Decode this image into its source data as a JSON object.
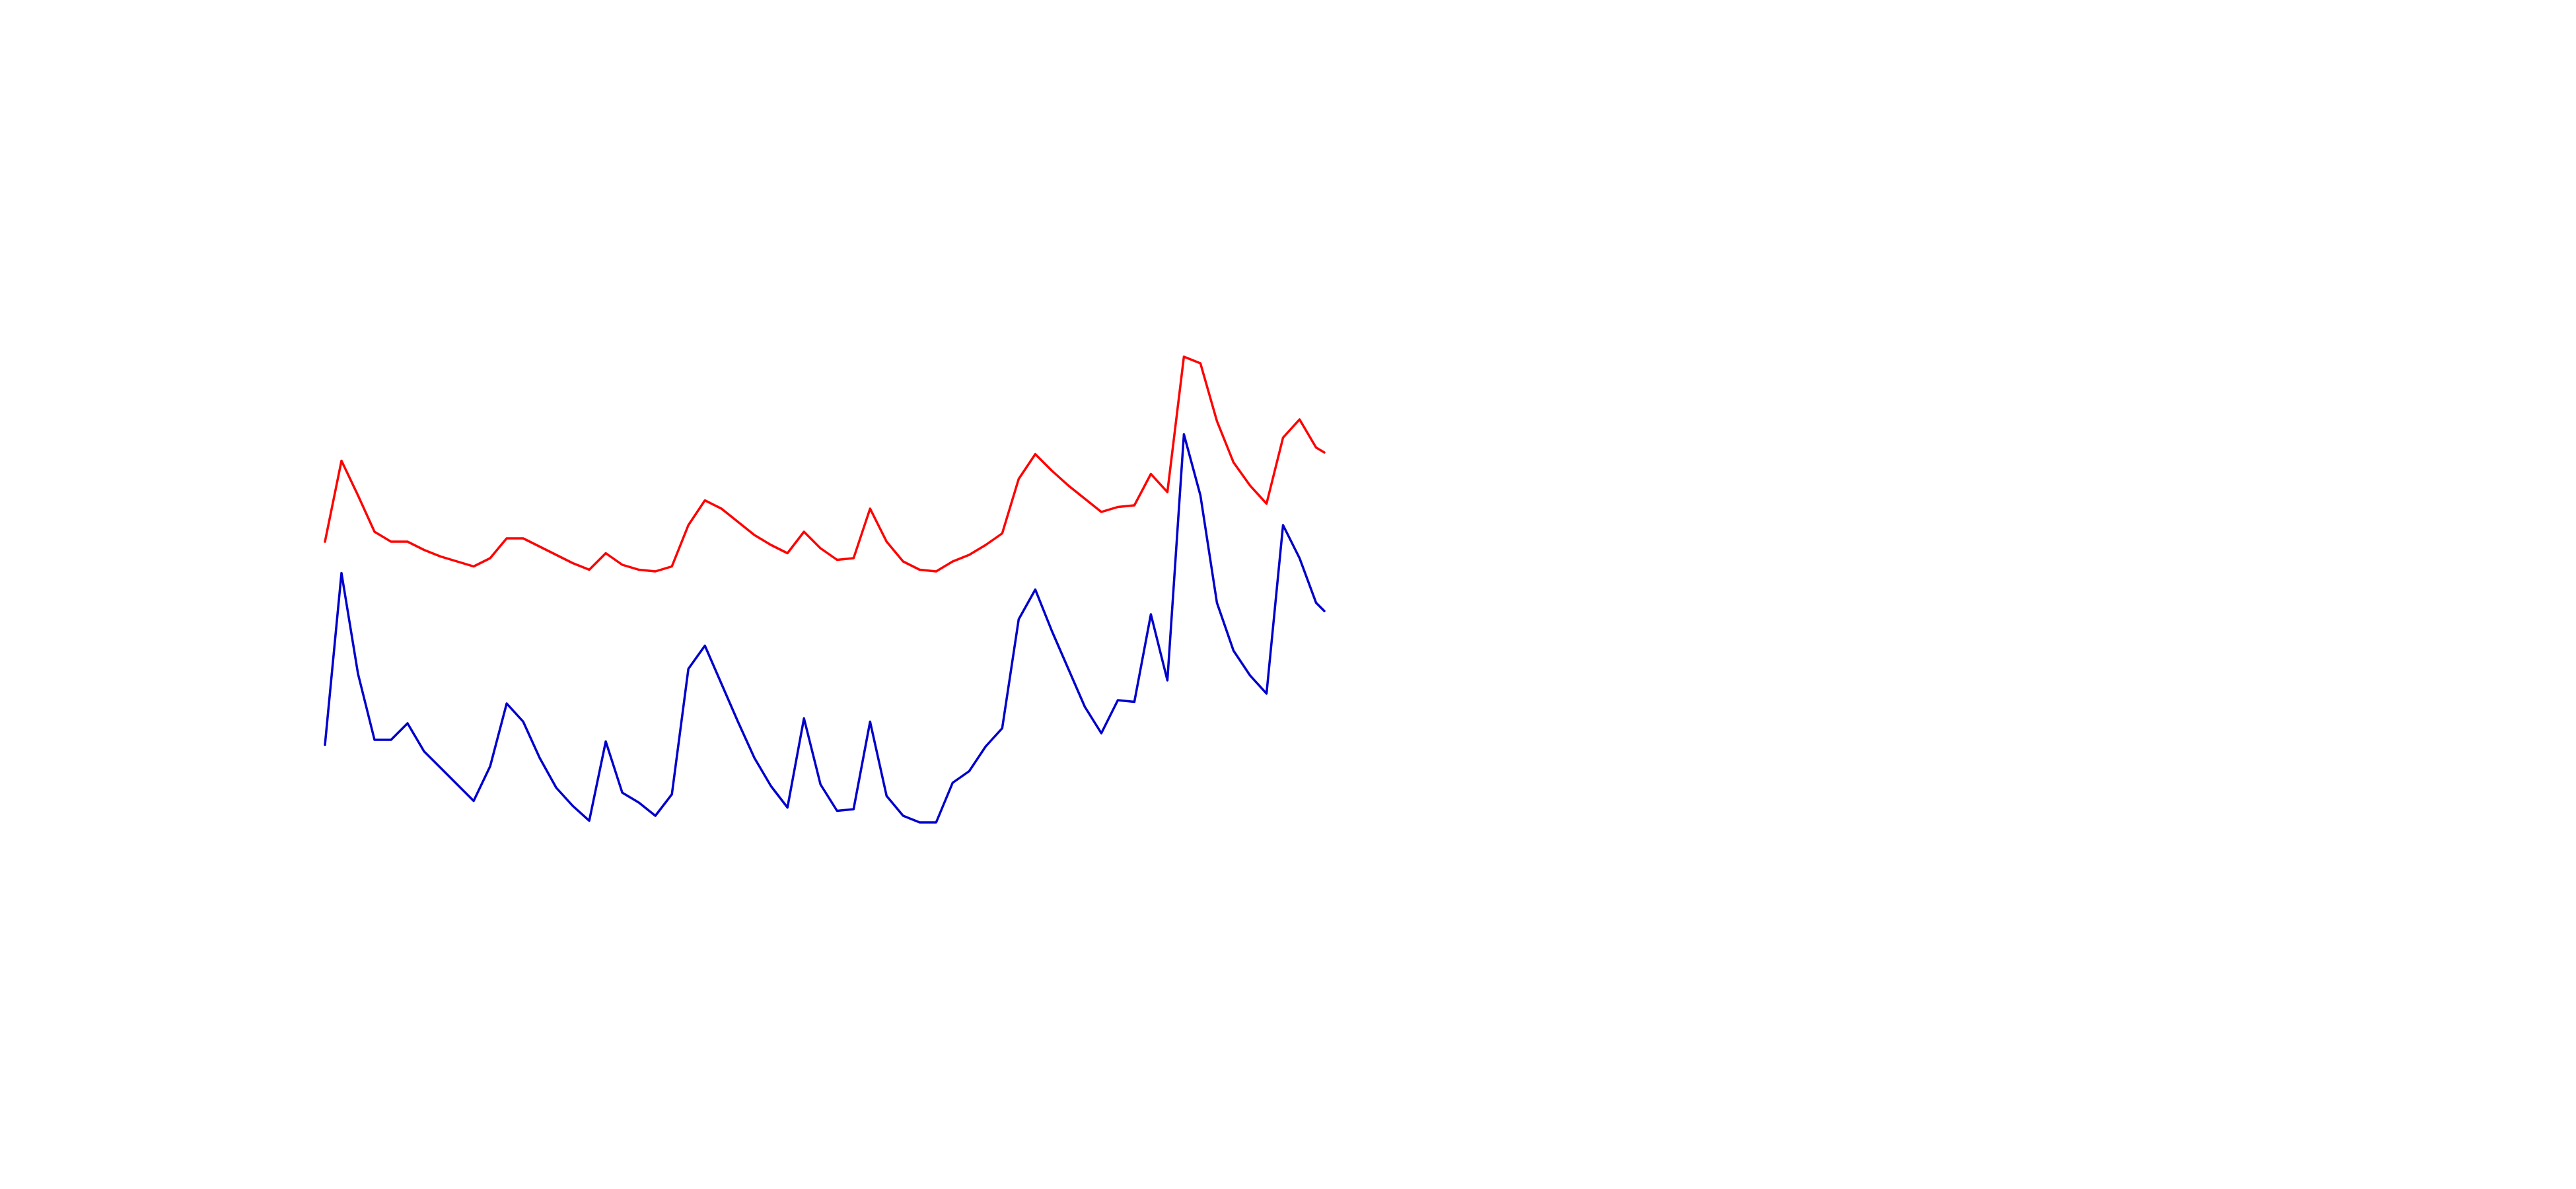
{
  "chart_data": {
    "type": "line",
    "x": [
      0,
      10,
      20,
      30,
      40,
      50,
      60,
      70,
      80,
      90,
      100,
      110,
      120,
      130,
      140,
      150,
      160,
      170,
      180,
      190,
      200,
      210,
      220,
      230,
      240,
      250,
      260,
      270,
      280,
      290,
      300,
      310,
      320,
      330,
      340,
      350,
      360,
      370,
      380,
      390,
      400,
      410,
      420,
      430,
      440,
      450,
      460,
      470,
      480,
      490,
      500,
      510,
      520,
      530,
      540,
      550,
      560,
      570,
      580,
      590,
      600,
      605
    ],
    "xlim": [
      0,
      605
    ],
    "ylim": [
      0,
      720
    ],
    "series": [
      {
        "color": "#ff0000",
        "values": [
          392,
          441,
          420,
          398,
          392,
          392,
          387,
          383,
          380,
          377,
          382,
          394,
          394,
          389,
          384,
          379,
          375,
          385,
          378,
          375,
          374,
          377,
          402,
          417,
          412,
          404,
          396,
          390,
          385,
          398,
          388,
          381,
          382,
          412,
          392,
          380,
          375,
          374,
          380,
          384,
          390,
          397,
          430,
          445,
          435,
          426,
          418,
          410,
          413,
          414,
          433,
          422,
          504,
          500,
          465,
          440,
          426,
          415,
          455,
          466,
          449,
          446
        ]
      },
      {
        "color": "#0000cc",
        "values": [
          269,
          373,
          312,
          272,
          272,
          282,
          265,
          255,
          245,
          235,
          256,
          294,
          283,
          261,
          243,
          232,
          223,
          271,
          240,
          234,
          226,
          239,
          315,
          329,
          306,
          283,
          261,
          244,
          231,
          285,
          245,
          229,
          230,
          283,
          238,
          226,
          222,
          222,
          246,
          253,
          268,
          279,
          345,
          363,
          338,
          315,
          292,
          276,
          296,
          295,
          348,
          308,
          457,
          420,
          355,
          326,
          311,
          300,
          402,
          382,
          355,
          350
        ]
      }
    ]
  }
}
